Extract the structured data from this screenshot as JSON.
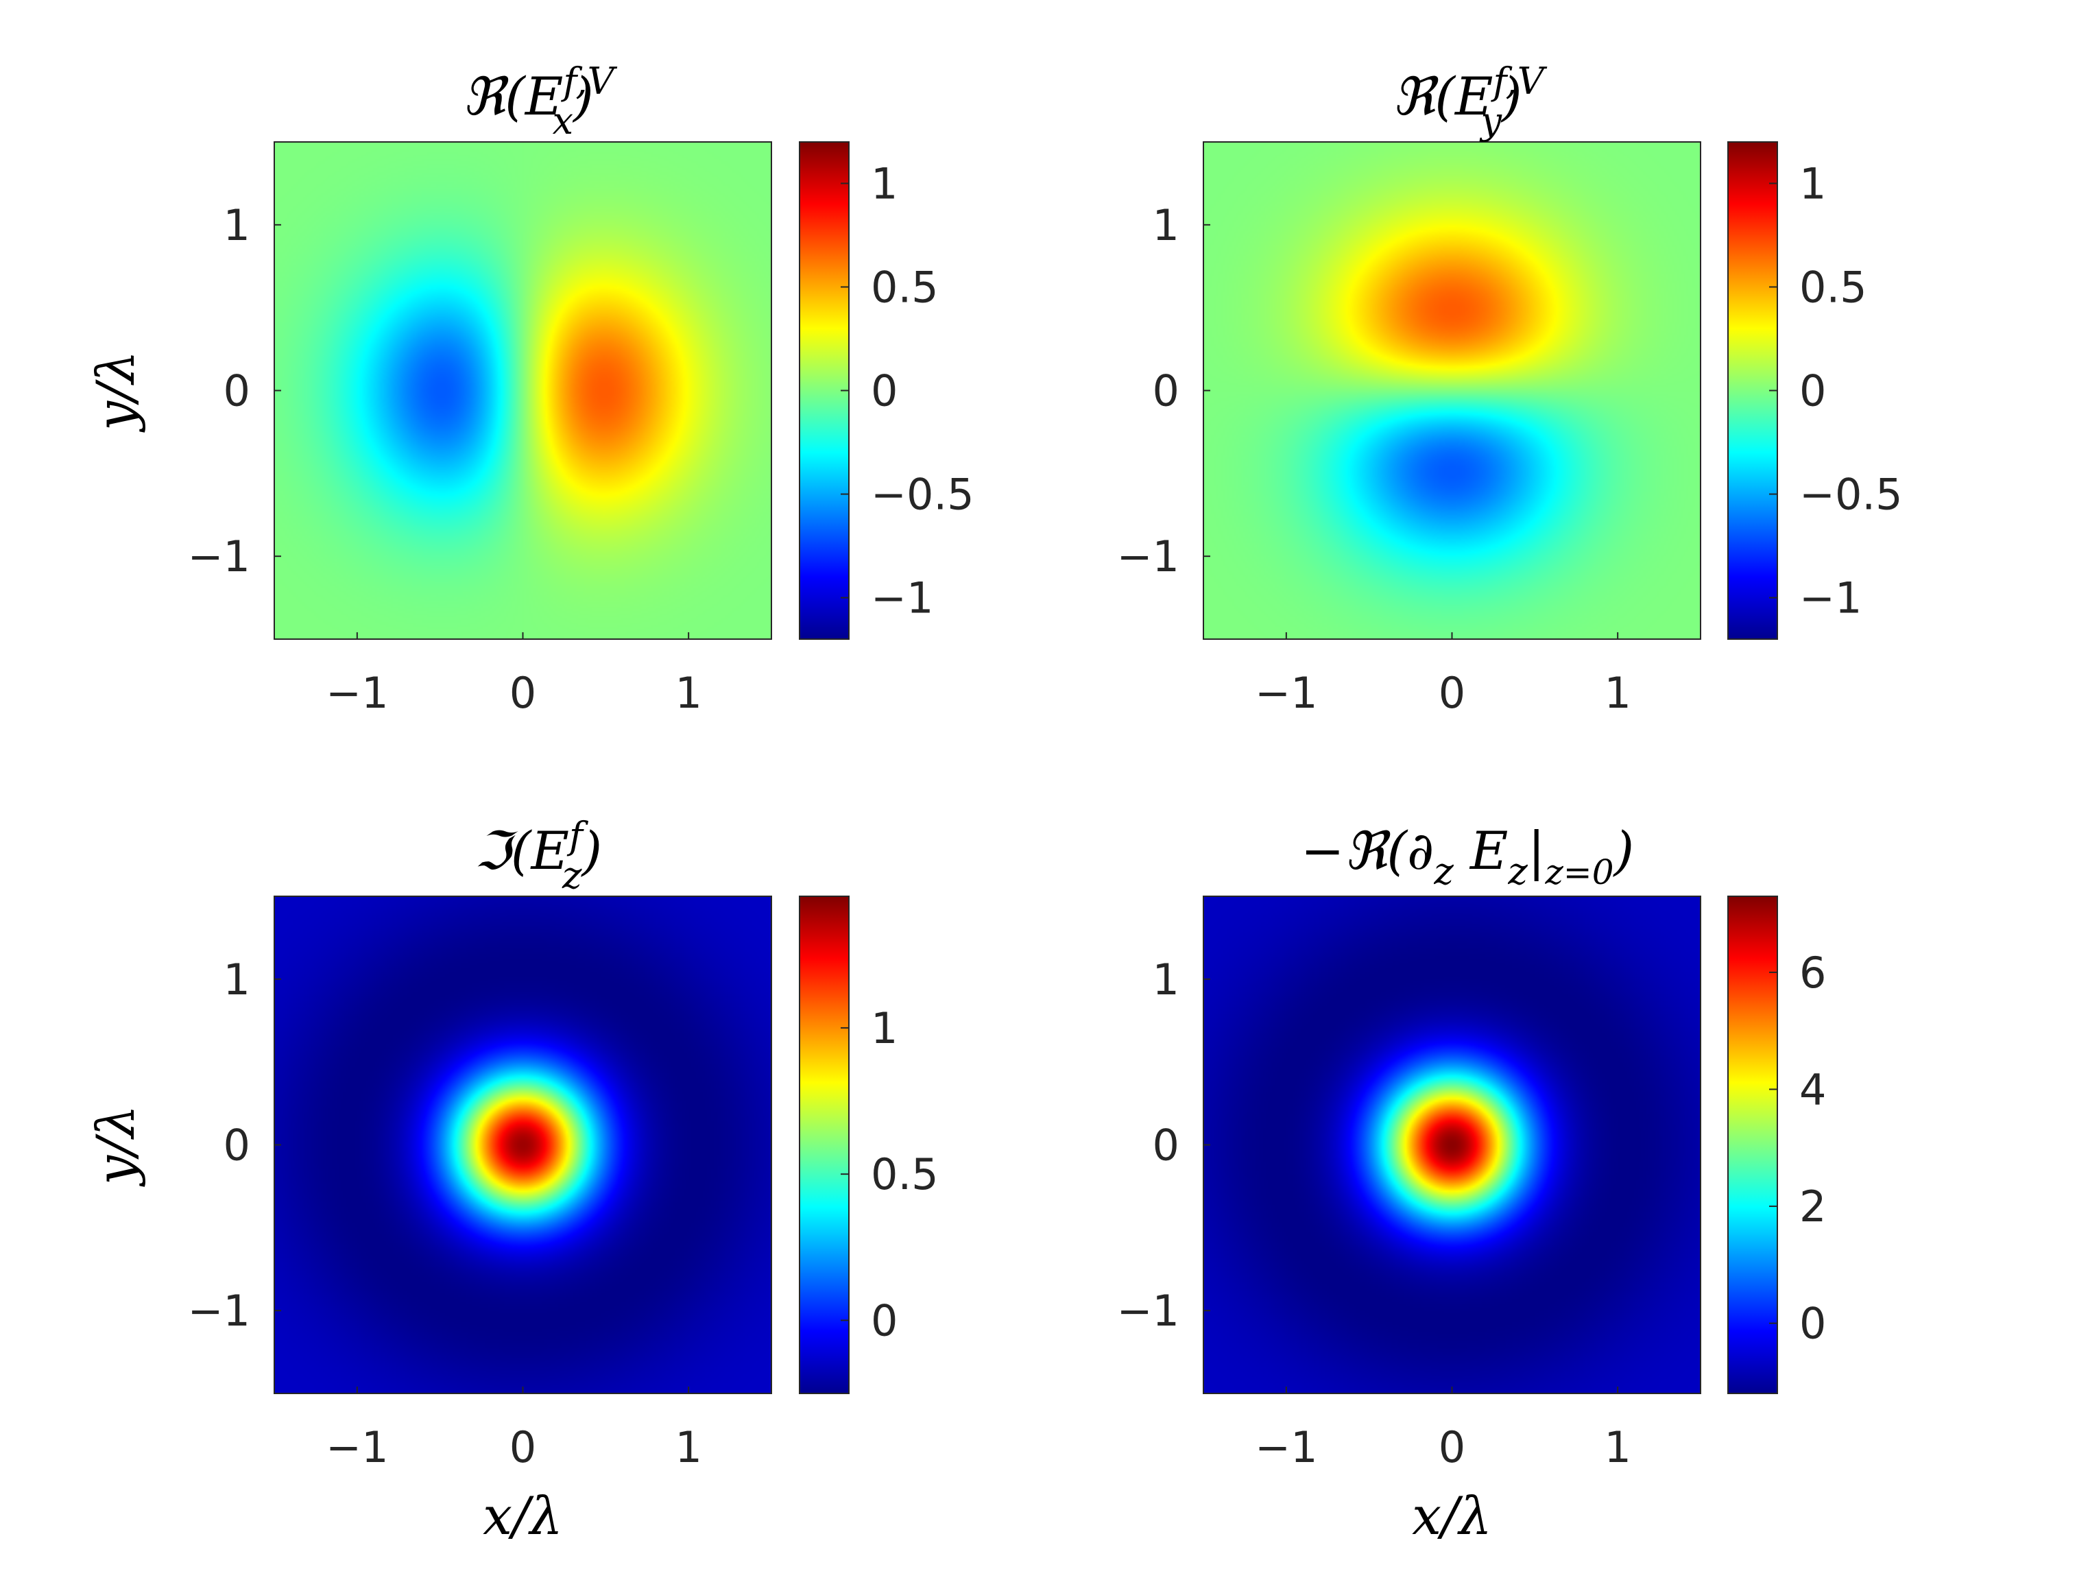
{
  "chart_data": [
    {
      "type": "heatmap",
      "title": "ℜ(E_x^{f,V})",
      "title_parts": {
        "prefix": "ℜ(E",
        "sub": "x",
        "sup": "f,V",
        "suffix": ")"
      },
      "xlabel": "",
      "ylabel": "y/λ",
      "xlim": [
        -1.5,
        1.5
      ],
      "ylim": [
        -1.5,
        1.5
      ],
      "x_ticks": [
        "−1",
        "0",
        "1"
      ],
      "y_ticks": [
        "−1",
        "0",
        "1"
      ],
      "colormap": "jet",
      "clim": [
        -1.2,
        1.2
      ],
      "colorbar_ticks": [
        "−1",
        "−0.5",
        "0",
        "0.5",
        "1"
      ],
      "pattern": "x-lobes",
      "peak_max": [
        0.55,
        0.0
      ],
      "peak_min": [
        -0.55,
        0.0
      ]
    },
    {
      "type": "heatmap",
      "title": "ℜ(E_y^{f,V})",
      "title_parts": {
        "prefix": "ℜ(E",
        "sub": "y",
        "sup": "f,V",
        "suffix": ")"
      },
      "xlabel": "",
      "ylabel": "",
      "xlim": [
        -1.5,
        1.5
      ],
      "ylim": [
        -1.5,
        1.5
      ],
      "x_ticks": [
        "−1",
        "0",
        "1"
      ],
      "y_ticks": [
        "−1",
        "0",
        "1"
      ],
      "colormap": "jet",
      "clim": [
        -1.2,
        1.2
      ],
      "colorbar_ticks": [
        "−1",
        "−0.5",
        "0",
        "0.5",
        "1"
      ],
      "pattern": "y-lobes",
      "peak_max": [
        0.0,
        0.55
      ],
      "peak_min": [
        0.0,
        -0.55
      ]
    },
    {
      "type": "heatmap",
      "title": "ℑ(E_z^f)",
      "title_parts": {
        "prefix": "ℑ(E",
        "sub": "z",
        "sup": "f",
        "suffix": ")"
      },
      "xlabel": "x/λ",
      "ylabel": "y/λ",
      "xlim": [
        -1.5,
        1.5
      ],
      "ylim": [
        -1.5,
        1.5
      ],
      "x_ticks": [
        "−1",
        "0",
        "1"
      ],
      "y_ticks": [
        "−1",
        "0",
        "1"
      ],
      "colormap": "jet",
      "clim": [
        -0.25,
        1.45
      ],
      "colorbar_ticks": [
        "0",
        "0.5",
        "1"
      ],
      "pattern": "central-spot",
      "peak_max": [
        0.0,
        0.0
      ],
      "peak_value": 1.4
    },
    {
      "type": "heatmap",
      "title": "−ℜ(∂_z E_z|_{z=0})",
      "title_parts": {
        "prefix": "−ℜ(∂",
        "sub": "z",
        "mid": " E",
        "sub2": "z",
        "bar": "|",
        "sub3": "z=0",
        "suffix": ")"
      },
      "xlabel": "x/λ",
      "ylabel": "",
      "xlim": [
        -1.5,
        1.5
      ],
      "ylim": [
        -1.5,
        1.5
      ],
      "x_ticks": [
        "−1",
        "0",
        "1"
      ],
      "y_ticks": [
        "−1",
        "0",
        "1"
      ],
      "colormap": "jet",
      "clim": [
        -1.2,
        7.3
      ],
      "colorbar_ticks": [
        "0",
        "2",
        "4",
        "6"
      ],
      "pattern": "central-spot",
      "peak_max": [
        0.0,
        0.0
      ],
      "peak_value": 7.2
    }
  ]
}
